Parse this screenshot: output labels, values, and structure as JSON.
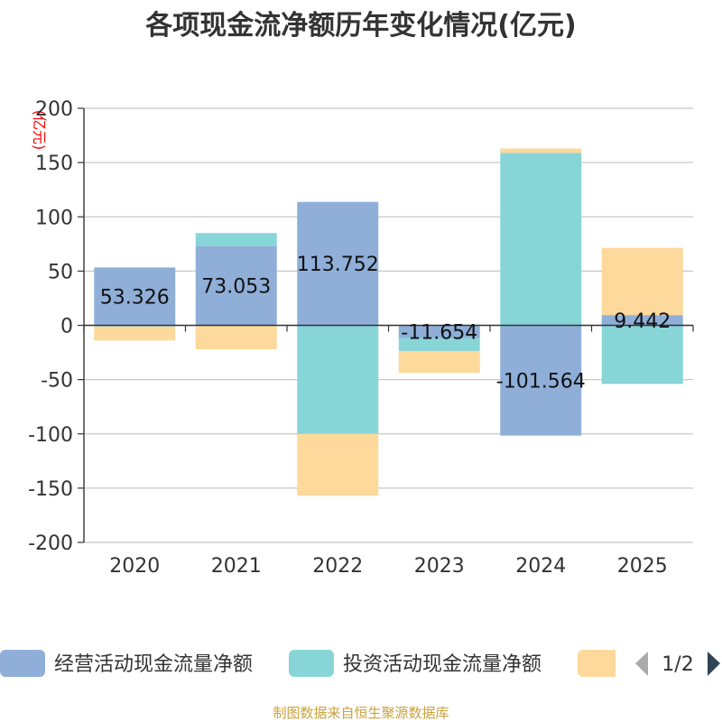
{
  "chart_data": {
    "type": "bar",
    "stacked": true,
    "title": "各项现金流净额历年变化情况(亿元)",
    "ylabel": "(亿元)",
    "categories": [
      "2020",
      "2021",
      "2022",
      "2023",
      "2024",
      "2025"
    ],
    "ylim": [
      -200,
      200
    ],
    "yticks": [
      200,
      150,
      100,
      50,
      0,
      -50,
      -100,
      -150,
      -200
    ],
    "grid": true,
    "series": [
      {
        "name": "经营活动现金流量净额",
        "color": "#8fafd9",
        "values": [
          53.326,
          73.053,
          113.752,
          -11.654,
          -101.564,
          9.442
        ],
        "labels": [
          "53.326",
          "73.053",
          "113.752",
          "-11.654",
          "-101.564",
          "9.442"
        ]
      },
      {
        "name": "投资活动现金流量净额",
        "color": "#88d5d8",
        "values": [
          -1,
          12,
          -100,
          -12,
          159,
          -54
        ]
      },
      {
        "name": "",
        "color": "#fdd99b",
        "values": [
          -13,
          -22,
          -57,
          -20,
          4,
          62
        ]
      }
    ],
    "legend": {
      "position": "bottom",
      "page": "1/2"
    }
  },
  "footer": {
    "source": "制图数据来自恒生聚源数据库"
  }
}
